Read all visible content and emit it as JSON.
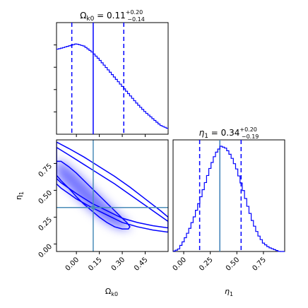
{
  "chart_data": [
    {
      "type": "line",
      "panel": "omega_k0 marginal",
      "title": {
        "main": "Ω",
        "sub": "k0",
        "value": " = 0.11",
        "plus": "+0.20",
        "minus": "−0.14"
      },
      "xlim": [
        -0.13,
        0.6
      ],
      "x": [
        -0.13,
        -0.1,
        -0.05,
        0.0,
        0.05,
        0.1,
        0.15,
        0.2,
        0.25,
        0.3,
        0.35,
        0.4,
        0.45,
        0.5,
        0.55,
        0.6
      ],
      "y": [
        0.76,
        0.77,
        0.79,
        0.81,
        0.79,
        0.74,
        0.67,
        0.59,
        0.51,
        0.43,
        0.35,
        0.27,
        0.2,
        0.14,
        0.08,
        0.05
      ],
      "quantile_lines": [
        -0.03,
        0.11,
        0.31
      ],
      "line_color": "#0000ff"
    },
    {
      "type": "heatmap",
      "panel": "omega_k0 vs eta_1 joint",
      "xlabel": {
        "main": "Ω",
        "sub": "k0"
      },
      "ylabel": {
        "main": "η",
        "sub": "1"
      },
      "xlim": [
        -0.13,
        0.6
      ],
      "ylim": [
        -0.07,
        0.97
      ],
      "xticks": [
        0.0,
        0.15,
        0.3,
        0.45
      ],
      "xtick_labels": [
        "0.00",
        "0.15",
        "0.30",
        "0.45"
      ],
      "yticks": [
        0.0,
        0.25,
        0.5,
        0.75
      ],
      "ytick_labels": [
        "0.00",
        "0.25",
        "0.50",
        "0.75"
      ],
      "truth": {
        "x": 0.11,
        "y": 0.34
      },
      "contours": [
        {
          "x": [
            -0.13,
            -0.05,
            0.05,
            0.15,
            0.25,
            0.35,
            0.45,
            0.55,
            0.6,
            0.6,
            0.5,
            0.4,
            0.3,
            0.2,
            0.1,
            0.0,
            -0.1,
            -0.13
          ],
          "y": [
            0.95,
            0.89,
            0.81,
            0.72,
            0.63,
            0.53,
            0.42,
            0.31,
            0.25,
            0.11,
            0.13,
            0.16,
            0.2,
            0.27,
            0.34,
            0.42,
            0.52,
            0.56
          ]
        },
        {
          "x": [
            -0.13,
            -0.05,
            0.05,
            0.15,
            0.25,
            0.35,
            0.45,
            0.55,
            0.6,
            0.6,
            0.5,
            0.4,
            0.3,
            0.2,
            0.1,
            0.0,
            -0.1,
            -0.13
          ],
          "y": [
            0.9,
            0.83,
            0.74,
            0.65,
            0.56,
            0.46,
            0.36,
            0.26,
            0.21,
            0.15,
            0.17,
            0.2,
            0.24,
            0.31,
            0.38,
            0.47,
            0.57,
            0.61
          ]
        },
        {
          "x": [
            -0.13,
            -0.1,
            -0.05,
            0.0,
            0.05,
            0.1,
            0.15,
            0.2,
            0.25,
            0.3,
            0.33,
            0.35,
            0.34,
            0.3,
            0.25,
            0.2,
            0.15,
            0.1,
            0.05,
            0.0,
            -0.05,
            -0.1,
            -0.13
          ],
          "y": [
            0.77,
            0.77,
            0.72,
            0.66,
            0.59,
            0.52,
            0.45,
            0.38,
            0.31,
            0.24,
            0.2,
            0.16,
            0.14,
            0.14,
            0.16,
            0.2,
            0.25,
            0.31,
            0.37,
            0.44,
            0.52,
            0.59,
            0.64
          ]
        }
      ],
      "density_color": "#0000ff"
    },
    {
      "type": "line",
      "panel": "eta_1 marginal",
      "title": {
        "main": "η",
        "sub": "1",
        "value": " = 0.34",
        "plus": "+0.20",
        "minus": "−0.19"
      },
      "xlabel": {
        "main": "η",
        "sub": "1"
      },
      "xlim": [
        -0.1,
        0.95
      ],
      "xticks": [
        0.0,
        0.25,
        0.5,
        0.75
      ],
      "xtick_labels": [
        "0.00",
        "0.25",
        "0.50",
        "0.75"
      ],
      "x": [
        -0.1,
        -0.05,
        0.0,
        0.05,
        0.1,
        0.15,
        0.2,
        0.25,
        0.3,
        0.35,
        0.4,
        0.45,
        0.5,
        0.55,
        0.6,
        0.65,
        0.7,
        0.75,
        0.8,
        0.85,
        0.9,
        0.95
      ],
      "y": [
        0.0,
        0.02,
        0.1,
        0.2,
        0.33,
        0.48,
        0.64,
        0.8,
        0.93,
        1.0,
        0.98,
        0.9,
        0.78,
        0.62,
        0.44,
        0.28,
        0.16,
        0.08,
        0.04,
        0.02,
        0.0,
        0.0
      ],
      "quantile_lines": [
        0.15,
        0.34,
        0.54
      ],
      "truth": 0.34,
      "line_color": "#0000ff"
    }
  ]
}
